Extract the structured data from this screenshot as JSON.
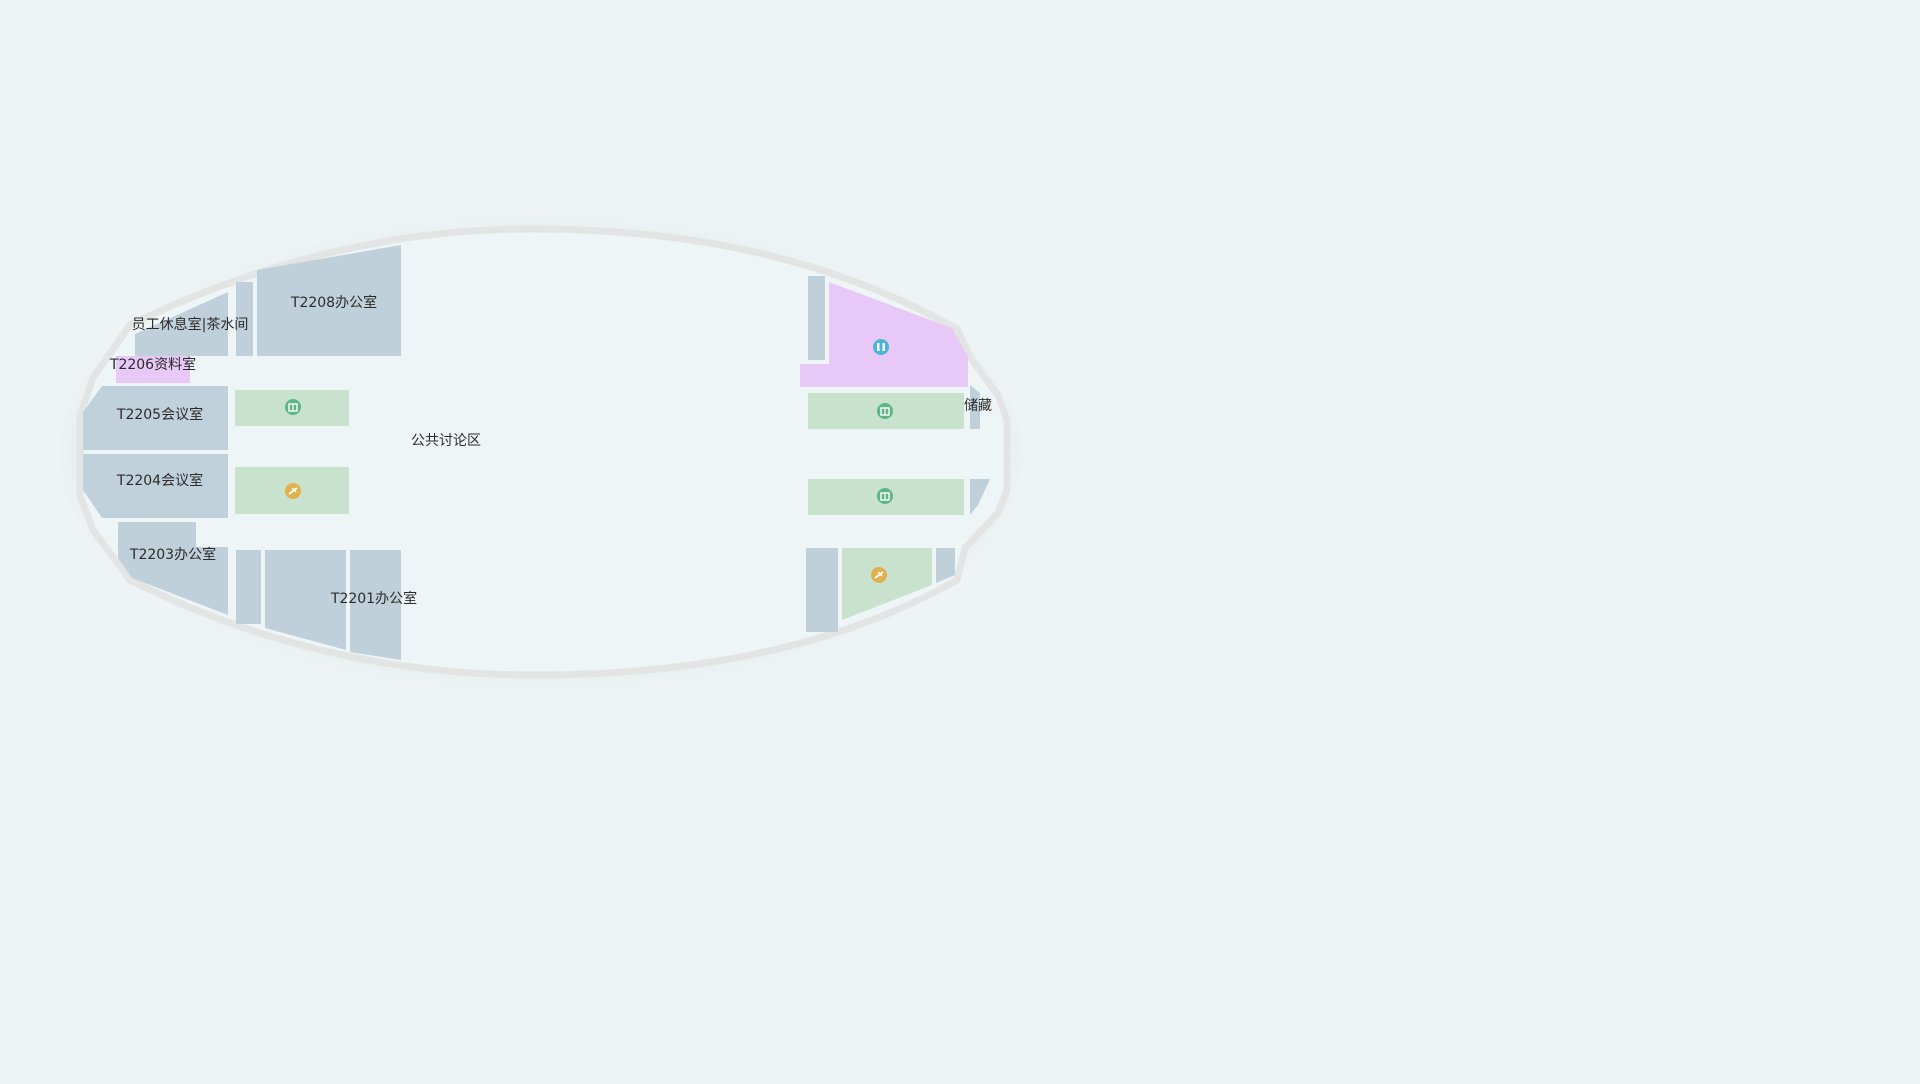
{
  "map": {
    "floor_label": "",
    "colors": {
      "background": "#eef3f6",
      "floor": "#eef5f6",
      "outline": "#e3e5e5",
      "office": "#c0d0da",
      "meeting": "#c1d1dc",
      "facility_green": "#c8e2cd",
      "pink": "#e8c8f6",
      "restroom_icon": "#4bb6d4",
      "elevator_icon": "#5fb585",
      "stair_icon": "#e0b04c"
    },
    "rooms": {
      "r_t2208": "T2208办公室",
      "r_staff_lounge": "员工休息室|茶水间",
      "r_t2206": "T2206资料室",
      "r_t2205": "T2205会议室",
      "r_t2204": "T2204会议室",
      "r_t2203": "T2203办公室",
      "r_t2201": "T2201办公室",
      "r_public": "公共讨论区",
      "r_storage": "储藏"
    },
    "icons": {
      "restroom": "restroom-icon",
      "elevator": "elevator-icon",
      "stairs": "stairs-icon"
    }
  }
}
